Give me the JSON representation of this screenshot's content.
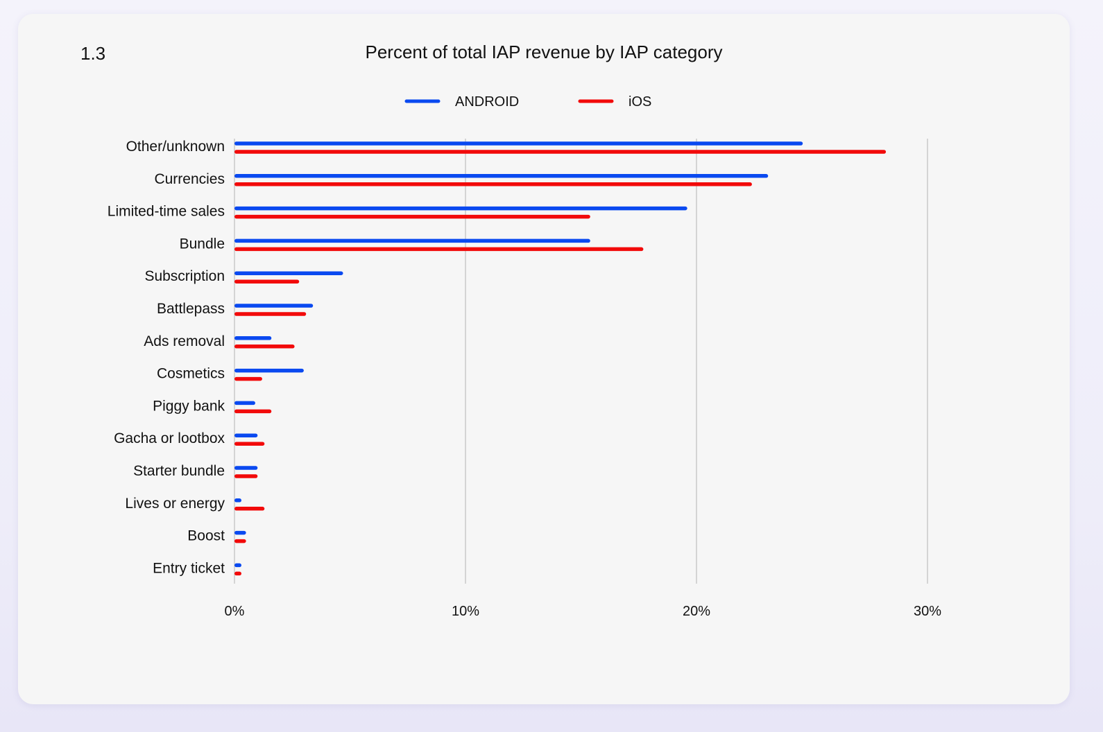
{
  "figure_number": "1.3",
  "chart_data": {
    "type": "bar",
    "orientation": "horizontal",
    "title": "Percent of total IAP revenue by IAP category",
    "categories": [
      "Other/unknown",
      "Currencies",
      "Limited-time sales",
      "Bundle",
      "Subscription",
      "Battlepass",
      "Ads removal",
      "Cosmetics",
      "Piggy bank",
      "Gacha or lootbox",
      "Starter bundle",
      "Lives or energy",
      "Boost",
      "Entry ticket"
    ],
    "series": [
      {
        "name": "ANDROID",
        "color": "#0a49f0",
        "values": [
          24.6,
          23.1,
          19.6,
          15.4,
          4.7,
          3.4,
          1.6,
          3.0,
          0.9,
          1.0,
          1.0,
          0.3,
          0.5,
          0.3
        ]
      },
      {
        "name": "iOS",
        "color": "#f20a0a",
        "values": [
          28.2,
          22.4,
          15.4,
          17.7,
          2.8,
          3.1,
          2.6,
          1.2,
          1.6,
          1.3,
          1.0,
          1.3,
          0.5,
          0.3
        ]
      }
    ],
    "x_ticks": [
      "0%",
      "10%",
      "20%",
      "30%"
    ],
    "x_tick_values": [
      0,
      10,
      20,
      30
    ],
    "xlim": [
      0,
      30
    ],
    "grid": "vertical",
    "legend": "top-center",
    "xlabel": "",
    "ylabel": ""
  }
}
